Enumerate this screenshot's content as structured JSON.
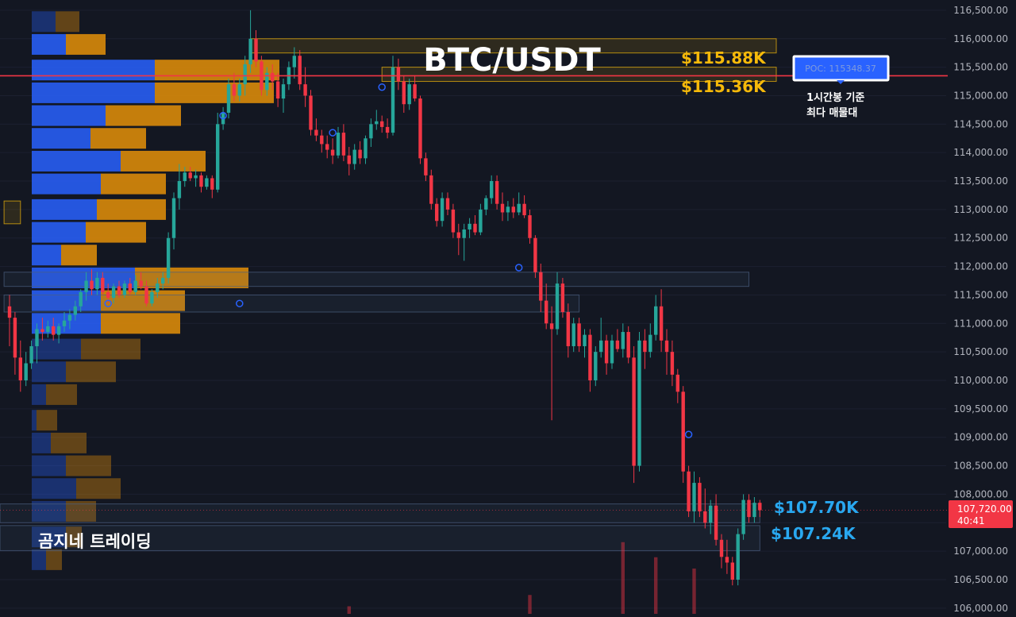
{
  "chart_data": {
    "type": "candlestick",
    "title": "BTC/USDT",
    "brand": "곰지네 트레이딩",
    "y_axis": {
      "ylim": [
        105900,
        116680
      ],
      "ticks": [
        "116,500.00",
        "116,000.00",
        "115,500.00",
        "115,000.00",
        "114,500.00",
        "114,000.00",
        "113,500.00",
        "113,000.00",
        "112,500.00",
        "112,000.00",
        "111,500.00",
        "111,000.00",
        "110,500.00",
        "110,000.00",
        "109,500.00",
        "109,000.00",
        "108,500.00",
        "108,000.00",
        "107,500.00",
        "107,000.00",
        "106,500.00",
        "106,000.00"
      ],
      "tick_values": [
        116500,
        116000,
        115500,
        115000,
        114500,
        114000,
        113500,
        113000,
        112500,
        112000,
        111500,
        111000,
        110500,
        110000,
        109500,
        109000,
        108500,
        108000,
        107500,
        107000,
        106500,
        106000
      ]
    },
    "current_price": {
      "label": "107,720.00",
      "timer": "40:41",
      "value": 107720,
      "color": "#f23645"
    },
    "poc": {
      "label": "POC: 115348.37",
      "value": 115348.37,
      "note_line1": "1시간봉 기준",
      "note_line2": "최다 매물대",
      "line_color": "#f23645"
    },
    "levels": [
      {
        "label": "$115.88K",
        "value": 115880,
        "color": "#f5b90a"
      },
      {
        "label": "$115.36K",
        "value": 115360,
        "color": "#f5b90a"
      },
      {
        "label": "$107.70K",
        "value": 107700,
        "color": "#29a8f0"
      },
      {
        "label": "$107.24K",
        "value": 107240,
        "color": "#29a8f0"
      }
    ],
    "colors": {
      "up": "#26a69a",
      "down": "#f23645",
      "buy_volume": "#2962ff",
      "sell_volume": "#d98a0a"
    },
    "candles": [
      {
        "o": 111300,
        "h": 111500,
        "l": 110600,
        "c": 111100
      },
      {
        "o": 111100,
        "h": 111200,
        "l": 110100,
        "c": 110400
      },
      {
        "o": 110400,
        "h": 110700,
        "l": 109800,
        "c": 110000
      },
      {
        "o": 110000,
        "h": 110500,
        "l": 109900,
        "c": 110300
      },
      {
        "o": 110300,
        "h": 110700,
        "l": 110200,
        "c": 110600
      },
      {
        "o": 110600,
        "h": 111000,
        "l": 110300,
        "c": 110900
      },
      {
        "o": 110900,
        "h": 111100,
        "l": 110700,
        "c": 110850
      },
      {
        "o": 110850,
        "h": 111050,
        "l": 110750,
        "c": 110950
      },
      {
        "o": 110950,
        "h": 111100,
        "l": 110700,
        "c": 110800
      },
      {
        "o": 110800,
        "h": 111000,
        "l": 110650,
        "c": 110950
      },
      {
        "o": 110950,
        "h": 111200,
        "l": 110850,
        "c": 111050
      },
      {
        "o": 111050,
        "h": 111250,
        "l": 110900,
        "c": 111150
      },
      {
        "o": 111150,
        "h": 111400,
        "l": 111050,
        "c": 111300
      },
      {
        "o": 111300,
        "h": 111600,
        "l": 111200,
        "c": 111550
      },
      {
        "o": 111550,
        "h": 111900,
        "l": 111400,
        "c": 111750
      },
      {
        "o": 111750,
        "h": 111950,
        "l": 111500,
        "c": 111600
      },
      {
        "o": 111600,
        "h": 111900,
        "l": 111500,
        "c": 111800
      },
      {
        "o": 111800,
        "h": 111900,
        "l": 111500,
        "c": 111550
      },
      {
        "o": 111550,
        "h": 111700,
        "l": 111350,
        "c": 111450
      },
      {
        "o": 111450,
        "h": 111700,
        "l": 111350,
        "c": 111650
      },
      {
        "o": 111650,
        "h": 111750,
        "l": 111450,
        "c": 111500
      },
      {
        "o": 111500,
        "h": 111750,
        "l": 111450,
        "c": 111700
      },
      {
        "o": 111700,
        "h": 111800,
        "l": 111500,
        "c": 111550
      },
      {
        "o": 111550,
        "h": 111850,
        "l": 111500,
        "c": 111750
      },
      {
        "o": 111750,
        "h": 111900,
        "l": 111600,
        "c": 111650
      },
      {
        "o": 111650,
        "h": 111750,
        "l": 111300,
        "c": 111350
      },
      {
        "o": 111350,
        "h": 111600,
        "l": 111300,
        "c": 111550
      },
      {
        "o": 111550,
        "h": 111800,
        "l": 111450,
        "c": 111700
      },
      {
        "o": 111700,
        "h": 111900,
        "l": 111600,
        "c": 111800
      },
      {
        "o": 111800,
        "h": 112600,
        "l": 111700,
        "c": 112500
      },
      {
        "o": 112500,
        "h": 113300,
        "l": 112300,
        "c": 113200
      },
      {
        "o": 113200,
        "h": 113800,
        "l": 113000,
        "c": 113500
      },
      {
        "o": 113500,
        "h": 113750,
        "l": 113400,
        "c": 113650
      },
      {
        "o": 113650,
        "h": 113750,
        "l": 113500,
        "c": 113550
      },
      {
        "o": 113550,
        "h": 113700,
        "l": 113400,
        "c": 113600
      },
      {
        "o": 113600,
        "h": 113650,
        "l": 113300,
        "c": 113400
      },
      {
        "o": 113400,
        "h": 113600,
        "l": 113350,
        "c": 113550
      },
      {
        "o": 113550,
        "h": 113600,
        "l": 113200,
        "c": 113350
      },
      {
        "o": 113350,
        "h": 114700,
        "l": 113300,
        "c": 114500
      },
      {
        "o": 114500,
        "h": 114800,
        "l": 114400,
        "c": 114700
      },
      {
        "o": 114700,
        "h": 115300,
        "l": 114600,
        "c": 115200
      },
      {
        "o": 115200,
        "h": 115400,
        "l": 114900,
        "c": 115000
      },
      {
        "o": 115000,
        "h": 115300,
        "l": 114900,
        "c": 115200
      },
      {
        "o": 115200,
        "h": 115700,
        "l": 115000,
        "c": 115550
      },
      {
        "o": 115550,
        "h": 116500,
        "l": 115400,
        "c": 116000
      },
      {
        "o": 116000,
        "h": 116150,
        "l": 115500,
        "c": 115600
      },
      {
        "o": 115600,
        "h": 115700,
        "l": 115000,
        "c": 115100
      },
      {
        "o": 115100,
        "h": 115500,
        "l": 115000,
        "c": 115400
      },
      {
        "o": 115400,
        "h": 115550,
        "l": 115100,
        "c": 115250
      },
      {
        "o": 115250,
        "h": 115400,
        "l": 114800,
        "c": 114950
      },
      {
        "o": 114950,
        "h": 115300,
        "l": 114700,
        "c": 115200
      },
      {
        "o": 115200,
        "h": 115600,
        "l": 115100,
        "c": 115500
      },
      {
        "o": 115500,
        "h": 115850,
        "l": 115300,
        "c": 115700
      },
      {
        "o": 115700,
        "h": 115800,
        "l": 115100,
        "c": 115200
      },
      {
        "o": 115200,
        "h": 115500,
        "l": 114800,
        "c": 115000
      },
      {
        "o": 115000,
        "h": 115100,
        "l": 114300,
        "c": 114400
      },
      {
        "o": 114400,
        "h": 114600,
        "l": 114200,
        "c": 114300
      },
      {
        "o": 114300,
        "h": 114400,
        "l": 114000,
        "c": 114150
      },
      {
        "o": 114150,
        "h": 114300,
        "l": 113900,
        "c": 114050
      },
      {
        "o": 114050,
        "h": 114250,
        "l": 113800,
        "c": 113950
      },
      {
        "o": 113950,
        "h": 114450,
        "l": 113900,
        "c": 114350
      },
      {
        "o": 114350,
        "h": 114500,
        "l": 113850,
        "c": 113950
      },
      {
        "o": 113950,
        "h": 114100,
        "l": 113600,
        "c": 113800
      },
      {
        "o": 113800,
        "h": 114150,
        "l": 113700,
        "c": 114050
      },
      {
        "o": 114050,
        "h": 114200,
        "l": 113800,
        "c": 113900
      },
      {
        "o": 113900,
        "h": 114300,
        "l": 113800,
        "c": 114250
      },
      {
        "o": 114250,
        "h": 114600,
        "l": 114100,
        "c": 114500
      },
      {
        "o": 114500,
        "h": 114750,
        "l": 114400,
        "c": 114550
      },
      {
        "o": 114550,
        "h": 114650,
        "l": 114350,
        "c": 114450
      },
      {
        "o": 114450,
        "h": 114600,
        "l": 114250,
        "c": 114350
      },
      {
        "o": 114350,
        "h": 115700,
        "l": 114300,
        "c": 115500
      },
      {
        "o": 115500,
        "h": 115650,
        "l": 115100,
        "c": 115250
      },
      {
        "o": 115250,
        "h": 115350,
        "l": 114700,
        "c": 114850
      },
      {
        "o": 114850,
        "h": 115300,
        "l": 114750,
        "c": 115200
      },
      {
        "o": 115200,
        "h": 115350,
        "l": 114900,
        "c": 114950
      },
      {
        "o": 114950,
        "h": 115000,
        "l": 113800,
        "c": 113900
      },
      {
        "o": 113900,
        "h": 114000,
        "l": 113500,
        "c": 113600
      },
      {
        "o": 113600,
        "h": 113700,
        "l": 113000,
        "c": 113100
      },
      {
        "o": 113100,
        "h": 113200,
        "l": 112700,
        "c": 112800
      },
      {
        "o": 112800,
        "h": 113300,
        "l": 112700,
        "c": 113200
      },
      {
        "o": 113200,
        "h": 113300,
        "l": 112900,
        "c": 113000
      },
      {
        "o": 113000,
        "h": 113100,
        "l": 112500,
        "c": 112600
      },
      {
        "o": 112600,
        "h": 112750,
        "l": 112200,
        "c": 112500
      },
      {
        "o": 112500,
        "h": 112750,
        "l": 112100,
        "c": 112650
      },
      {
        "o": 112650,
        "h": 112850,
        "l": 112500,
        "c": 112750
      },
      {
        "o": 112750,
        "h": 112900,
        "l": 112550,
        "c": 112600
      },
      {
        "o": 112600,
        "h": 113100,
        "l": 112550,
        "c": 113000
      },
      {
        "o": 113000,
        "h": 113250,
        "l": 112900,
        "c": 113200
      },
      {
        "o": 113200,
        "h": 113600,
        "l": 113100,
        "c": 113500
      },
      {
        "o": 113500,
        "h": 113600,
        "l": 113000,
        "c": 113100
      },
      {
        "o": 113100,
        "h": 113300,
        "l": 112800,
        "c": 112950
      },
      {
        "o": 112950,
        "h": 113150,
        "l": 112800,
        "c": 113050
      },
      {
        "o": 113050,
        "h": 113200,
        "l": 112850,
        "c": 112950
      },
      {
        "o": 112950,
        "h": 113300,
        "l": 112900,
        "c": 113100
      },
      {
        "o": 113100,
        "h": 113250,
        "l": 112850,
        "c": 112900
      },
      {
        "o": 112900,
        "h": 113000,
        "l": 112400,
        "c": 112500
      },
      {
        "o": 112500,
        "h": 112550,
        "l": 111800,
        "c": 111900
      },
      {
        "o": 111900,
        "h": 112050,
        "l": 111200,
        "c": 111400
      },
      {
        "o": 111400,
        "h": 111700,
        "l": 110900,
        "c": 111000
      },
      {
        "o": 111000,
        "h": 111300,
        "l": 109300,
        "c": 110900
      },
      {
        "o": 110900,
        "h": 111900,
        "l": 110800,
        "c": 111700
      },
      {
        "o": 111700,
        "h": 111800,
        "l": 111100,
        "c": 111200
      },
      {
        "o": 111200,
        "h": 111350,
        "l": 110400,
        "c": 110600
      },
      {
        "o": 110600,
        "h": 111100,
        "l": 110500,
        "c": 111000
      },
      {
        "o": 111000,
        "h": 111100,
        "l": 110500,
        "c": 110600
      },
      {
        "o": 110600,
        "h": 110900,
        "l": 110400,
        "c": 110800
      },
      {
        "o": 110800,
        "h": 110900,
        "l": 109800,
        "c": 110000
      },
      {
        "o": 110000,
        "h": 110600,
        "l": 109900,
        "c": 110500
      },
      {
        "o": 110500,
        "h": 111100,
        "l": 110400,
        "c": 110700
      },
      {
        "o": 110700,
        "h": 110800,
        "l": 110100,
        "c": 110300
      },
      {
        "o": 110300,
        "h": 110800,
        "l": 110200,
        "c": 110700
      },
      {
        "o": 110700,
        "h": 110900,
        "l": 110500,
        "c": 110550
      },
      {
        "o": 110550,
        "h": 111000,
        "l": 110400,
        "c": 110850
      },
      {
        "o": 110850,
        "h": 110950,
        "l": 110300,
        "c": 110400
      },
      {
        "o": 110400,
        "h": 110600,
        "l": 108200,
        "c": 108500
      },
      {
        "o": 108500,
        "h": 110850,
        "l": 108400,
        "c": 110700
      },
      {
        "o": 110700,
        "h": 110900,
        "l": 110200,
        "c": 110500
      },
      {
        "o": 110500,
        "h": 111000,
        "l": 110400,
        "c": 110800
      },
      {
        "o": 110800,
        "h": 111500,
        "l": 110700,
        "c": 111300
      },
      {
        "o": 111300,
        "h": 111600,
        "l": 110500,
        "c": 110700
      },
      {
        "o": 110700,
        "h": 110900,
        "l": 110100,
        "c": 110500
      },
      {
        "o": 110500,
        "h": 110700,
        "l": 109900,
        "c": 110100
      },
      {
        "o": 110100,
        "h": 110200,
        "l": 109600,
        "c": 109800
      },
      {
        "o": 109800,
        "h": 109900,
        "l": 108200,
        "c": 108400
      },
      {
        "o": 108400,
        "h": 108500,
        "l": 107600,
        "c": 107700
      },
      {
        "o": 107700,
        "h": 108400,
        "l": 107500,
        "c": 108200
      },
      {
        "o": 108200,
        "h": 108300,
        "l": 107600,
        "c": 107700
      },
      {
        "o": 107700,
        "h": 108100,
        "l": 107400,
        "c": 107500
      },
      {
        "o": 107500,
        "h": 107900,
        "l": 107300,
        "c": 107800
      },
      {
        "o": 107800,
        "h": 108000,
        "l": 107100,
        "c": 107200
      },
      {
        "o": 107200,
        "h": 107300,
        "l": 106700,
        "c": 106900
      },
      {
        "o": 106900,
        "h": 107200,
        "l": 106600,
        "c": 106800
      },
      {
        "o": 106800,
        "h": 106900,
        "l": 106400,
        "c": 106500
      },
      {
        "o": 106500,
        "h": 107400,
        "l": 106400,
        "c": 107300
      },
      {
        "o": 107300,
        "h": 108000,
        "l": 107200,
        "c": 107900
      },
      {
        "o": 107900,
        "h": 108000,
        "l": 107500,
        "c": 107600
      },
      {
        "o": 107600,
        "h": 107950,
        "l": 107500,
        "c": 107850
      },
      {
        "o": 107850,
        "h": 107900,
        "l": 107600,
        "c": 107720
      }
    ],
    "volume_profile": [
      {
        "price": 116300,
        "buy": 30,
        "sell": 30
      },
      {
        "price": 115900,
        "buy": 43,
        "sell": 50
      },
      {
        "price": 115450,
        "buy": 155,
        "sell": 157
      },
      {
        "price": 115050,
        "buy": 155,
        "sell": 150
      },
      {
        "price": 114650,
        "buy": 93,
        "sell": 95
      },
      {
        "price": 114250,
        "buy": 74,
        "sell": 70
      },
      {
        "price": 113850,
        "buy": 112,
        "sell": 107
      },
      {
        "price": 113450,
        "buy": 87,
        "sell": 82
      },
      {
        "price": 113000,
        "buy": 82,
        "sell": 87
      },
      {
        "price": 112600,
        "buy": 68,
        "sell": 76
      },
      {
        "price": 112200,
        "buy": 37,
        "sell": 45
      },
      {
        "price": 111800,
        "buy": 130,
        "sell": 143
      },
      {
        "price": 111400,
        "buy": 87,
        "sell": 106
      },
      {
        "price": 111000,
        "buy": 87,
        "sell": 100
      },
      {
        "price": 110550,
        "buy": 62,
        "sell": 75
      },
      {
        "price": 110150,
        "buy": 43,
        "sell": 63
      },
      {
        "price": 109750,
        "buy": 18,
        "sell": 39
      },
      {
        "price": 109300,
        "buy": 6,
        "sell": 26
      },
      {
        "price": 108900,
        "buy": 24,
        "sell": 45
      },
      {
        "price": 108500,
        "buy": 43,
        "sell": 57
      },
      {
        "price": 108100,
        "buy": 56,
        "sell": 56
      },
      {
        "price": 107700,
        "buy": 43,
        "sell": 38
      },
      {
        "price": 107250,
        "buy": 43,
        "sell": 20
      },
      {
        "price": 106850,
        "buy": 18,
        "sell": 20
      }
    ],
    "zones": [
      {
        "price_top": 113150,
        "price_bottom": 112750,
        "start_index": -1,
        "end_index": 2,
        "color": "#f5b90a"
      },
      {
        "price_top": 111900,
        "price_bottom": 111650,
        "start_index": -1,
        "end_index": 135,
        "color": "#4a6080"
      },
      {
        "price_top": 111500,
        "price_bottom": 111200,
        "start_index": -1,
        "end_index": 104,
        "color": "#4a6080"
      },
      {
        "price_top": 116000,
        "price_bottom": 115750,
        "start_index": 44,
        "end_index": 140,
        "color": "#f5b90a"
      },
      {
        "price_top": 115500,
        "price_bottom": 115250,
        "start_index": 68,
        "end_index": 140,
        "color": "#f5b90a"
      },
      {
        "price_top": 107830,
        "price_bottom": 107500,
        "start_index": -3,
        "end_index": 137,
        "color": "#4a6080"
      },
      {
        "price_top": 107450,
        "price_bottom": 107010,
        "start_index": -3,
        "end_index": 137,
        "color": "#4a6080"
      }
    ],
    "markers": [
      {
        "index": 18,
        "price": 111350
      },
      {
        "index": 39,
        "price": 114650
      },
      {
        "index": 59,
        "price": 114350
      },
      {
        "index": 68,
        "price": 115150
      },
      {
        "index": 93,
        "price": 111980
      },
      {
        "index": 124,
        "price": 109050
      },
      {
        "index": 42,
        "price": 111350
      }
    ],
    "volume_bars": [
      {
        "index": 112,
        "value": 0.95
      },
      {
        "index": 118,
        "value": 0.75
      },
      {
        "index": 125,
        "value": 0.6
      },
      {
        "index": 95,
        "value": 0.25
      },
      {
        "index": 62,
        "value": 0.1
      }
    ]
  }
}
